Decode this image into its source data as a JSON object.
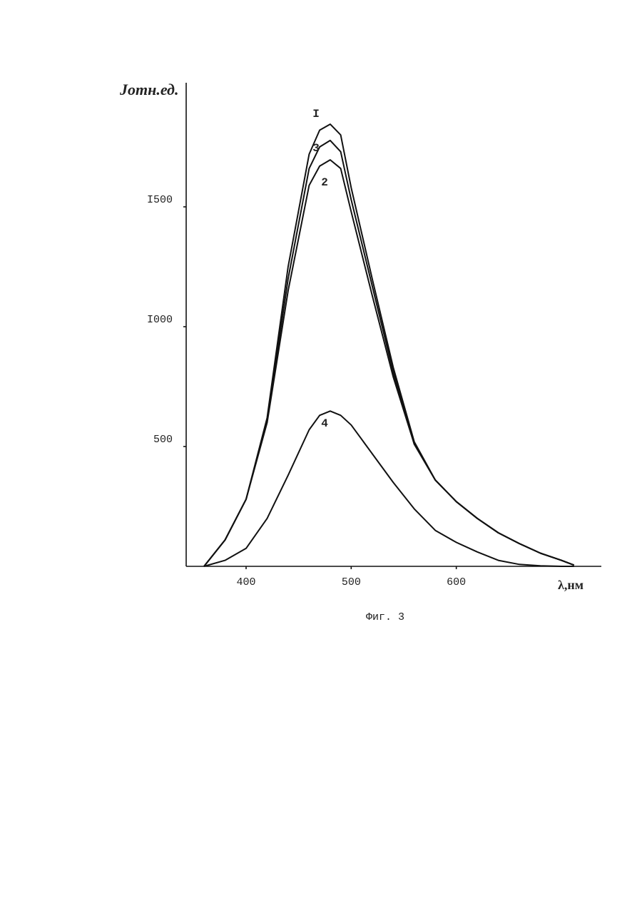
{
  "chart_data": {
    "type": "line",
    "ylabel": "Jотн.ед.",
    "xlabel": "λ,нм",
    "caption": "Фиг. 3",
    "x": [
      360,
      380,
      400,
      420,
      440,
      460,
      470,
      480,
      490,
      500,
      520,
      540,
      560,
      580,
      600,
      620,
      640,
      660,
      680,
      700,
      712
    ],
    "series": [
      {
        "name": "I",
        "color": "#111111",
        "values": [
          0,
          110,
          280,
          620,
          1250,
          1720,
          1820,
          1845,
          1800,
          1580,
          1200,
          830,
          520,
          360,
          270,
          200,
          140,
          95,
          55,
          25,
          5
        ]
      },
      {
        "name": "3",
        "color": "#111111",
        "values": [
          0,
          110,
          280,
          610,
          1200,
          1660,
          1750,
          1777,
          1730,
          1530,
          1170,
          810,
          510,
          360,
          270,
          200,
          140,
          95,
          55,
          25,
          5
        ]
      },
      {
        "name": "2",
        "color": "#111111",
        "values": [
          0,
          110,
          280,
          600,
          1150,
          1590,
          1670,
          1696,
          1660,
          1480,
          1130,
          790,
          510,
          360,
          270,
          200,
          140,
          95,
          55,
          25,
          5
        ]
      },
      {
        "name": "4",
        "color": "#111111",
        "values": [
          0,
          25,
          75,
          200,
          380,
          570,
          630,
          648,
          630,
          590,
          470,
          350,
          240,
          150,
          100,
          60,
          25,
          8,
          2,
          0,
          0
        ]
      }
    ],
    "xlim": [
      343,
      738
    ],
    "ylim": [
      0,
      2000
    ],
    "xticks": [
      400,
      500,
      600
    ],
    "yticks": [
      500,
      {
        "value": 1000,
        "label": "I000"
      },
      {
        "value": 1500,
        "label": "I500"
      }
    ]
  }
}
